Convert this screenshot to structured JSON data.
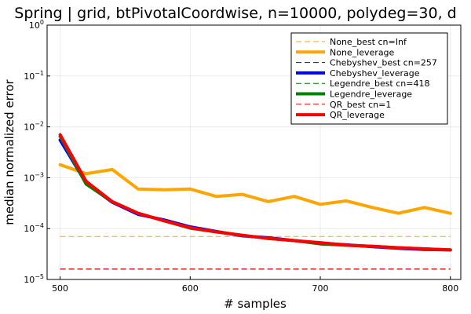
{
  "chart_data": {
    "type": "line",
    "title": "Spring | grid, btPivotalCoordwise, n=10000, polydeg=30, d",
    "xlabel": "# samples",
    "ylabel": "median normalized error",
    "x_ticks": [
      {
        "value": 500,
        "label": "500"
      },
      {
        "value": 600,
        "label": "600"
      },
      {
        "value": 700,
        "label": "700"
      },
      {
        "value": 800,
        "label": "800"
      }
    ],
    "y_ticks": [
      {
        "value": 1e-05,
        "base": "10",
        "exp": "−5"
      },
      {
        "value": 0.0001,
        "base": "10",
        "exp": "−4"
      },
      {
        "value": 0.001,
        "base": "10",
        "exp": "−3"
      },
      {
        "value": 0.01,
        "base": "10",
        "exp": "−2"
      },
      {
        "value": 0.1,
        "base": "10",
        "exp": "−1"
      },
      {
        "value": 1,
        "base": "10",
        "exp": "0"
      }
    ],
    "xlim": [
      490,
      808
    ],
    "ylim": [
      1e-05,
      1
    ],
    "y_scale": "log",
    "grid": true,
    "legend_position": "top-right",
    "series": [
      {
        "name": "None_best cn=Inf",
        "color": "#FFA500",
        "style": "dashed",
        "x": [
          500,
          800
        ],
        "y": [
          7e-05,
          7e-05
        ]
      },
      {
        "name": "None_leverage",
        "color": "#FFA500",
        "style": "solid",
        "x": [
          500,
          520,
          540,
          560,
          580,
          600,
          620,
          640,
          660,
          680,
          700,
          720,
          740,
          760,
          780,
          800
        ],
        "y": [
          0.0018,
          0.0012,
          0.00145,
          0.0006,
          0.00058,
          0.0006,
          0.00043,
          0.00047,
          0.00034,
          0.00043,
          0.0003,
          0.00035,
          0.00026,
          0.0002,
          0.00026,
          0.0002
        ]
      },
      {
        "name": "Chebyshev_best cn=257",
        "color": "#0000FF",
        "style": "dashed",
        "x": [
          500,
          800
        ],
        "y": [
          1.6e-05,
          1.6e-05
        ]
      },
      {
        "name": "Chebyshev_leverage",
        "color": "#0000FF",
        "style": "solid",
        "x": [
          500,
          520,
          540,
          560,
          580,
          600,
          620,
          640,
          660,
          680,
          700,
          720,
          740,
          760,
          780,
          800
        ],
        "y": [
          0.0055,
          0.00078,
          0.00033,
          0.00019,
          0.000148,
          0.000108,
          8.8e-05,
          7.2e-05,
          6.6e-05,
          5.8e-05,
          5.2e-05,
          4.8e-05,
          4.4e-05,
          4.1e-05,
          3.9e-05,
          3.8e-05
        ]
      },
      {
        "name": "Legendre_best cn=418",
        "color": "#008000",
        "style": "dashed",
        "x": [
          500,
          800
        ],
        "y": [
          1.6e-05,
          1.6e-05
        ]
      },
      {
        "name": "Legendre_leverage",
        "color": "#008000",
        "style": "solid",
        "x": [
          500,
          520,
          540,
          560,
          580,
          600,
          620,
          640,
          660,
          680,
          700,
          720,
          740,
          760,
          780,
          800
        ],
        "y": [
          0.0065,
          0.00075,
          0.00034,
          0.0002,
          0.000142,
          0.000102,
          8.6e-05,
          7.4e-05,
          6.4e-05,
          5.8e-05,
          5e-05,
          4.7e-05,
          4.5e-05,
          4.2e-05,
          4e-05,
          3.8e-05
        ]
      },
      {
        "name": "QR_best cn=1",
        "color": "#FF0000",
        "style": "dashed",
        "x": [
          500,
          800
        ],
        "y": [
          1.6e-05,
          1.6e-05
        ]
      },
      {
        "name": "QR_leverage",
        "color": "#FF0000",
        "style": "solid",
        "x": [
          500,
          520,
          540,
          560,
          580,
          600,
          620,
          640,
          660,
          680,
          700,
          720,
          740,
          760,
          780,
          800
        ],
        "y": [
          0.007,
          0.00085,
          0.00034,
          0.0002,
          0.000142,
          0.000104,
          8.6e-05,
          7.4e-05,
          6.4e-05,
          5.8e-05,
          5.3e-05,
          4.7e-05,
          4.5e-05,
          4.2e-05,
          4e-05,
          3.8e-05
        ]
      }
    ]
  }
}
